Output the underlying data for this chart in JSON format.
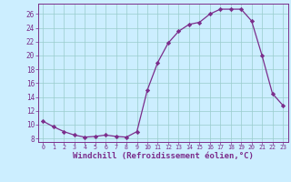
{
  "x": [
    0,
    1,
    2,
    3,
    4,
    5,
    6,
    7,
    8,
    9,
    10,
    11,
    12,
    13,
    14,
    15,
    16,
    17,
    18,
    19,
    20,
    21,
    22,
    23
  ],
  "y": [
    10.5,
    9.7,
    9.0,
    8.5,
    8.2,
    8.3,
    8.5,
    8.3,
    8.2,
    9.0,
    15.0,
    19.0,
    21.8,
    23.5,
    24.5,
    24.8,
    26.0,
    26.7,
    26.7,
    26.7,
    25.0,
    20.0,
    14.5,
    12.8
  ],
  "line_color": "#7b2d8b",
  "marker": "D",
  "marker_size": 2.2,
  "xlabel": "Windchill (Refroidissement éolien,°C)",
  "bg_color": "#cceeff",
  "grid_color": "#99cccc",
  "label_color": "#7b2d8b",
  "ylim": [
    7.5,
    27.5
  ],
  "yticks": [
    8,
    10,
    12,
    14,
    16,
    18,
    20,
    22,
    24,
    26
  ],
  "xticks": [
    0,
    1,
    2,
    3,
    4,
    5,
    6,
    7,
    8,
    9,
    10,
    11,
    12,
    13,
    14,
    15,
    16,
    17,
    18,
    19,
    20,
    21,
    22,
    23
  ]
}
